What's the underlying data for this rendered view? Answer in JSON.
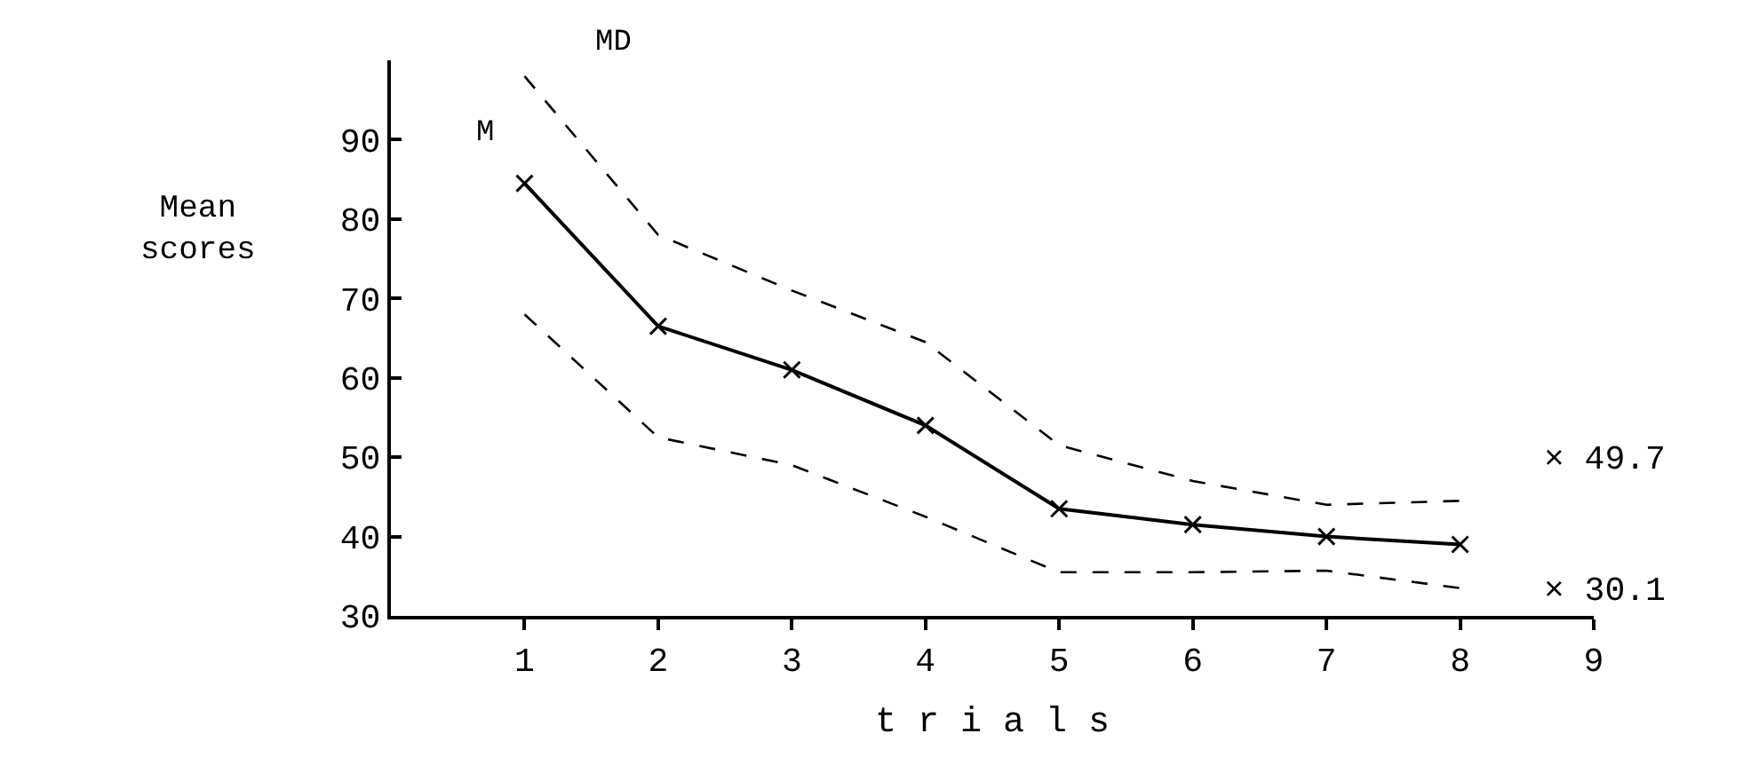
{
  "chart_data": {
    "type": "line",
    "xlabel": "t r i a l s",
    "ylabel": "Mean scores",
    "x": [
      1,
      2,
      3,
      4,
      5,
      6,
      7,
      8
    ],
    "series": [
      {
        "name": "M",
        "color": "#000000",
        "values": [
          84.5,
          66.5,
          61,
          54,
          43.5,
          41.5,
          40,
          39
        ],
        "marker": "cross",
        "line_style": "solid"
      },
      {
        "name": "MD",
        "color": "#000000",
        "values": [
          98,
          78,
          71,
          64.5,
          51.5,
          47,
          44,
          44.5
        ],
        "marker": "none",
        "line_style": "dashed"
      },
      {
        "color": "#000000",
        "values": [
          68,
          52.5,
          49,
          42.5,
          35.5,
          35.5,
          35.7,
          33.5
        ],
        "marker": "none",
        "line_style": "dashed"
      }
    ],
    "annotations": [
      "× 49.7",
      "× 30.1"
    ],
    "xlim": [
      0,
      9
    ],
    "xticks": [
      1,
      2,
      3,
      4,
      5,
      6,
      7,
      8,
      9
    ],
    "ylim": [
      30,
      100
    ],
    "yticks": [
      30,
      40,
      50,
      60,
      70,
      80,
      90
    ],
    "legend": false
  }
}
